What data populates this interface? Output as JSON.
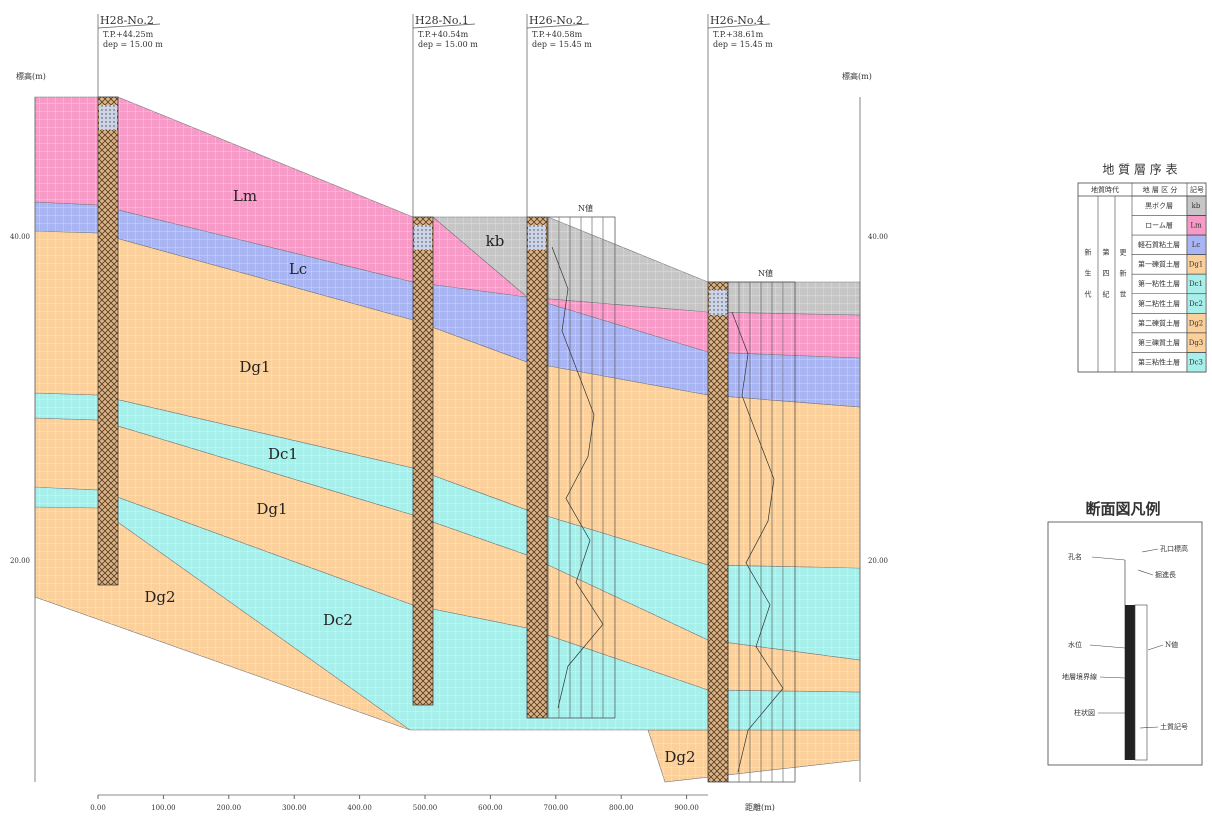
{
  "axes": {
    "y_label_left": "標高(m)",
    "y_label_right": "標高(m)",
    "x_label": "距離(m)",
    "x_ticks": [
      "0.00",
      "100.00",
      "200.00",
      "300.00",
      "400.00",
      "500.00",
      "600.00",
      "700.00",
      "800.00",
      "900.00"
    ],
    "y_ticks": [
      "40.00",
      "20.00"
    ]
  },
  "boreholes": [
    {
      "name": "H28-No.2",
      "elevation": "T.P.+44.25m",
      "depth": "dep = 15.00 m"
    },
    {
      "name": "H28-No.1",
      "elevation": "T.P.+40.54m",
      "depth": "dep = 15.00 m"
    },
    {
      "name": "H26-No.2",
      "elevation": "T.P.+40.58m",
      "depth": "dep = 15.45 m"
    },
    {
      "name": "H26-No.4",
      "elevation": "T.P.+38.61m",
      "depth": "dep = 15.45 m"
    }
  ],
  "n_value_labels": [
    "N値",
    "N値"
  ],
  "layer_labels": [
    "Lm",
    "Lc",
    "kb",
    "Dg1",
    "Dc1",
    "Dg1",
    "Dg2",
    "Dc2",
    "Dg2"
  ],
  "stratigraphy": {
    "title": "地 質 層 序 表",
    "headers": [
      "地質時代",
      "地 層 区 分",
      "記号"
    ],
    "era": [
      "新生代",
      "第四紀",
      "更新世"
    ],
    "rows": [
      [
        "黒ボク層",
        "kb"
      ],
      [
        "ローム層",
        "Lm"
      ],
      [
        "軽石質粘土層",
        "Lc"
      ],
      [
        "第一礫質土層",
        "Dg1"
      ],
      [
        "第一粘性土層",
        "Dc1"
      ],
      [
        "第二粘性土層",
        "Dc2"
      ],
      [
        "第二礫質土層",
        "Dg2"
      ],
      [
        "第三礫質土層",
        "Dg3"
      ],
      [
        "第三粘性土層",
        "Dc3"
      ]
    ]
  },
  "section_legend": {
    "title": "断面図凡例",
    "labels": [
      "孔名",
      "孔口標高",
      "掘進長",
      "水位",
      "N値",
      "地層境界線",
      "柱状図",
      "土質記号"
    ]
  }
}
